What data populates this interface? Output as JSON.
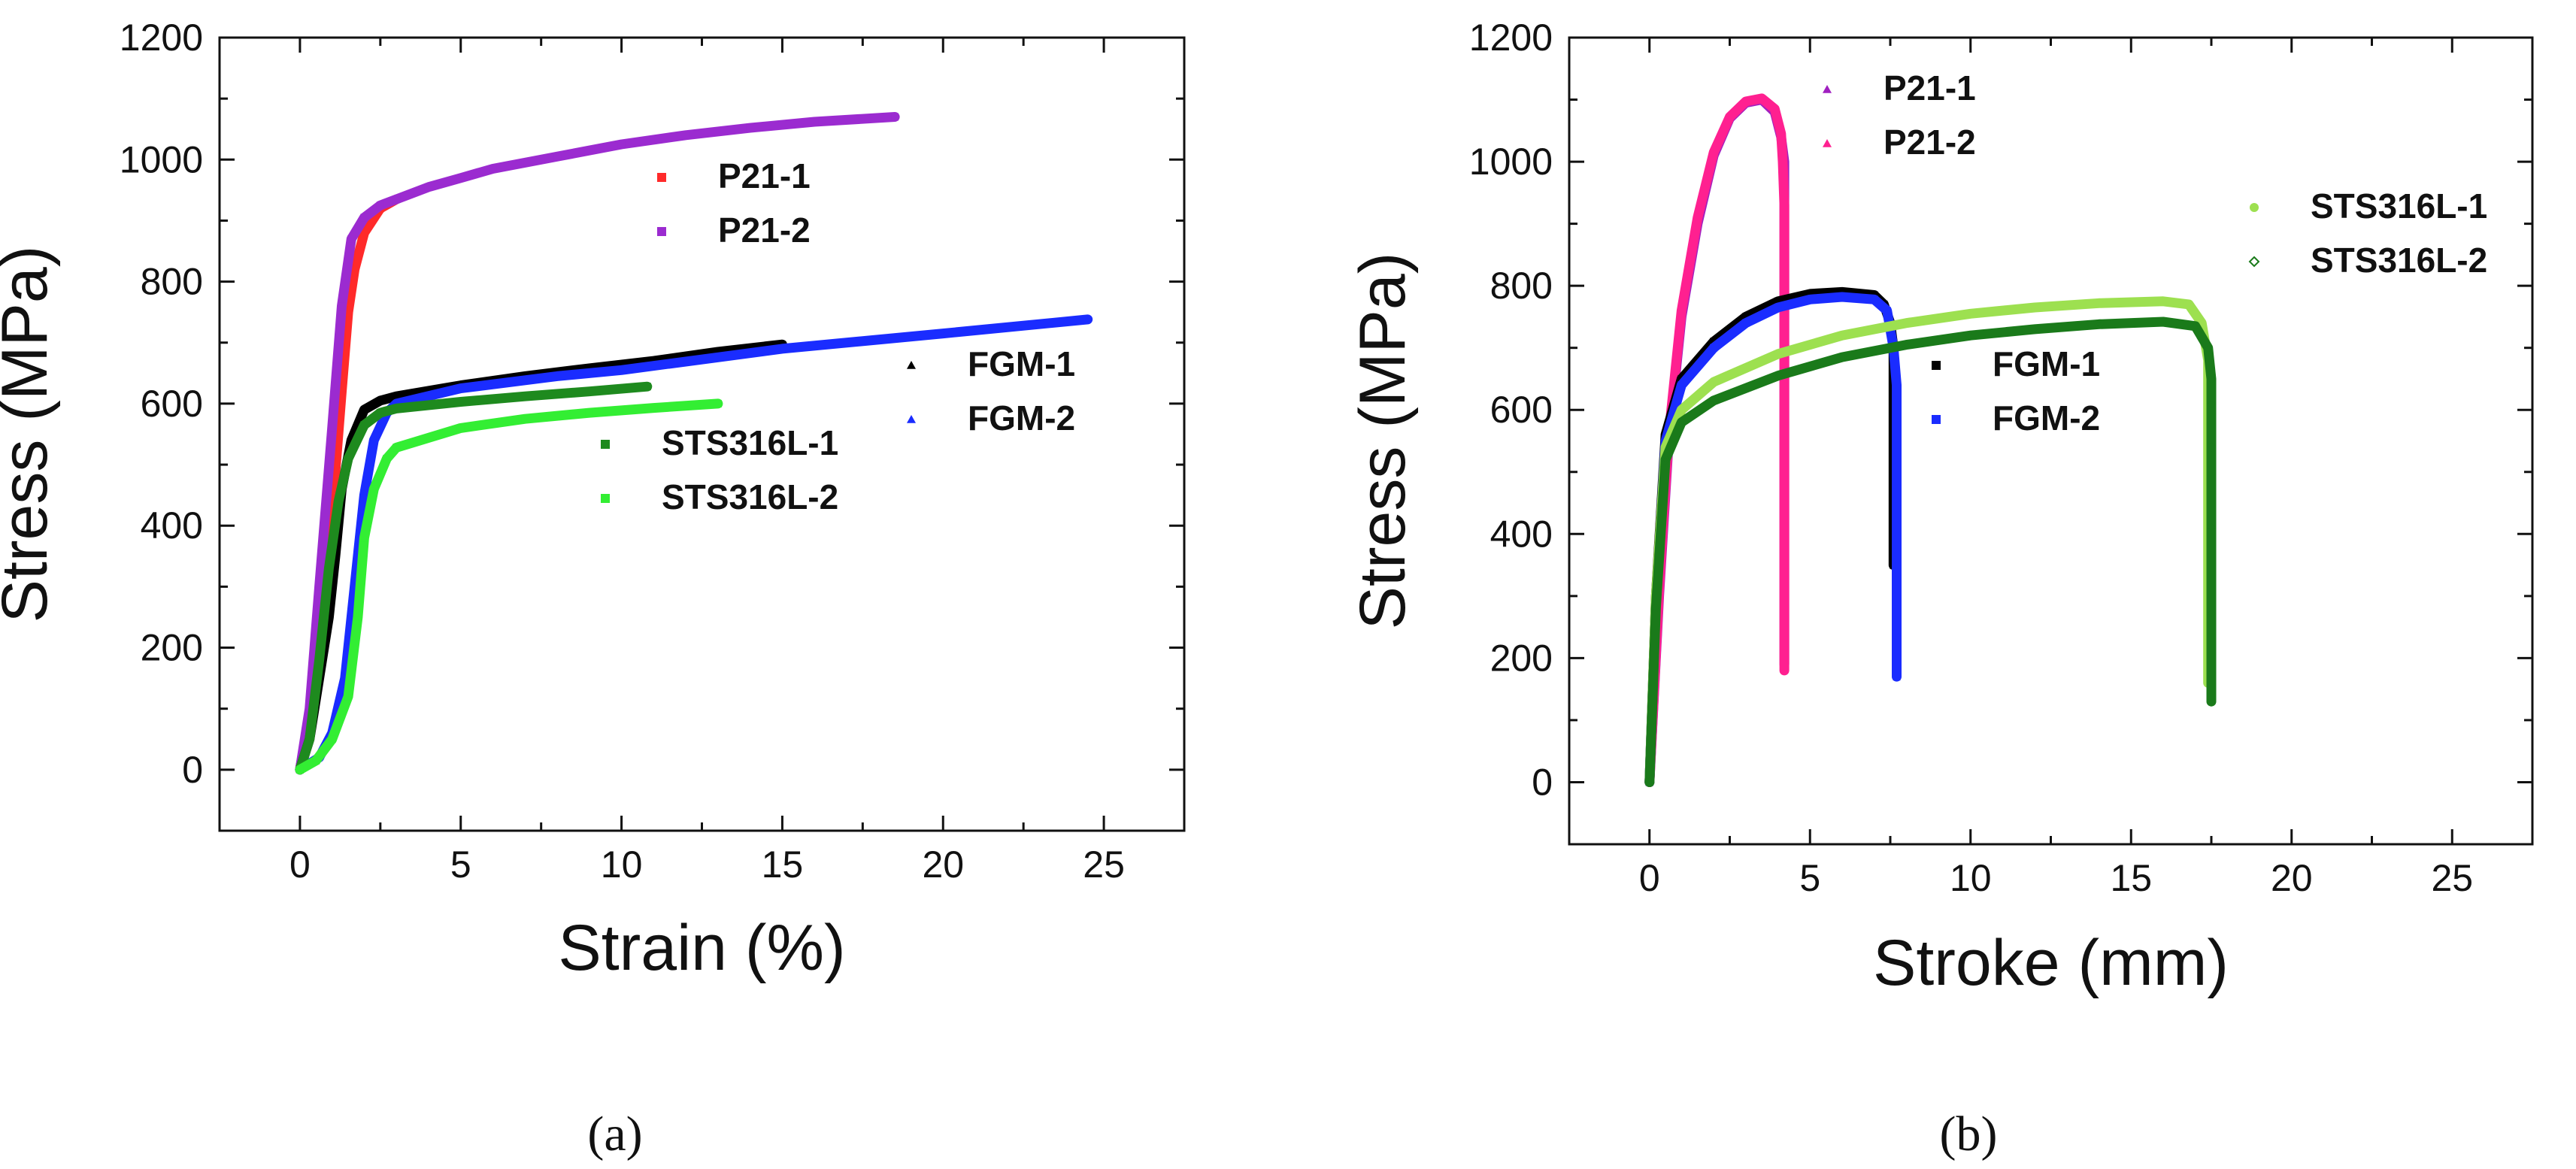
{
  "chart_data": [
    {
      "id": "a",
      "type": "scatter",
      "panel_label": "(a)",
      "xlabel": "Strain (%)",
      "ylabel": "Stress (MPa)",
      "xlim": [
        -2.5,
        27.5
      ],
      "ylim": [
        -100,
        1200
      ],
      "xticks": [
        0,
        5,
        10,
        15,
        20,
        25
      ],
      "yticks": [
        0,
        200,
        400,
        600,
        800,
        1000,
        1200
      ],
      "grid": false,
      "legend_groups": [
        {
          "location": "upper-center",
          "entries": [
            0,
            1
          ]
        },
        {
          "location": "center-right",
          "entries": [
            2,
            3
          ]
        },
        {
          "location": "center",
          "entries": [
            4,
            5
          ]
        }
      ],
      "series": [
        {
          "name": "P21-1",
          "color": "#ff2a2a",
          "marker": "square",
          "points": [
            [
              0,
              0
            ],
            [
              0.5,
              150
            ],
            [
              1.0,
              420
            ],
            [
              1.3,
              620
            ],
            [
              1.5,
              750
            ],
            [
              1.7,
              820
            ],
            [
              2.0,
              880
            ],
            [
              2.5,
              920
            ],
            [
              3,
              935
            ]
          ]
        },
        {
          "name": "P21-2",
          "color": "#9b2bd0",
          "marker": "square",
          "points": [
            [
              0,
              0
            ],
            [
              0.3,
              100
            ],
            [
              0.6,
              300
            ],
            [
              1.0,
              560
            ],
            [
              1.3,
              760
            ],
            [
              1.6,
              870
            ],
            [
              2.0,
              905
            ],
            [
              2.5,
              925
            ],
            [
              3,
              935
            ],
            [
              4,
              955
            ],
            [
              5,
              970
            ],
            [
              6,
              985
            ],
            [
              8,
              1005
            ],
            [
              10,
              1025
            ],
            [
              12,
              1040
            ],
            [
              14,
              1052
            ],
            [
              16,
              1062
            ],
            [
              18.5,
              1070
            ]
          ]
        },
        {
          "name": "FGM-1",
          "color": "#000000",
          "marker": "triangle",
          "points": [
            [
              0,
              0
            ],
            [
              0.3,
              50
            ],
            [
              0.6,
              150
            ],
            [
              0.9,
              250
            ],
            [
              1.1,
              350
            ],
            [
              1.3,
              460
            ],
            [
              1.6,
              540
            ],
            [
              2,
              590
            ],
            [
              2.5,
              605
            ],
            [
              3,
              612
            ],
            [
              5,
              630
            ],
            [
              7,
              645
            ],
            [
              9,
              658
            ],
            [
              11,
              670
            ],
            [
              13,
              685
            ],
            [
              15,
              697
            ]
          ]
        },
        {
          "name": "FGM-2",
          "color": "#1a2cff",
          "marker": "triangle",
          "points": [
            [
              0,
              0
            ],
            [
              0.6,
              20
            ],
            [
              1.0,
              60
            ],
            [
              1.4,
              150
            ],
            [
              1.7,
              300
            ],
            [
              2.0,
              450
            ],
            [
              2.3,
              540
            ],
            [
              2.7,
              585
            ],
            [
              3,
              600
            ],
            [
              5,
              625
            ],
            [
              8,
              645
            ],
            [
              10,
              655
            ],
            [
              15,
              690
            ],
            [
              20,
              715
            ],
            [
              24.5,
              738
            ]
          ]
        },
        {
          "name": "STS316L-1",
          "color": "#1e8a1e",
          "marker": "square",
          "points": [
            [
              0,
              0
            ],
            [
              0.3,
              50
            ],
            [
              0.6,
              180
            ],
            [
              0.9,
              330
            ],
            [
              1.2,
              440
            ],
            [
              1.5,
              510
            ],
            [
              2,
              565
            ],
            [
              2.5,
              585
            ],
            [
              3,
              592
            ],
            [
              5,
              603
            ],
            [
              7,
              612
            ],
            [
              9,
              620
            ],
            [
              10.8,
              628
            ]
          ]
        },
        {
          "name": "STS316L-2",
          "color": "#33ee33",
          "marker": "square",
          "points": [
            [
              0,
              0
            ],
            [
              0.5,
              15
            ],
            [
              1.0,
              50
            ],
            [
              1.5,
              120
            ],
            [
              1.8,
              250
            ],
            [
              2.0,
              380
            ],
            [
              2.3,
              460
            ],
            [
              2.7,
              510
            ],
            [
              3,
              528
            ],
            [
              5,
              560
            ],
            [
              7,
              575
            ],
            [
              9,
              585
            ],
            [
              11,
              593
            ],
            [
              13,
              600
            ]
          ]
        }
      ]
    },
    {
      "id": "b",
      "type": "scatter",
      "panel_label": "(b)",
      "xlabel": "Stroke (mm)",
      "ylabel": "Stress (MPa)",
      "xlim": [
        -2.5,
        27.5
      ],
      "ylim": [
        -100,
        1200
      ],
      "xticks": [
        0,
        5,
        10,
        15,
        20,
        25
      ],
      "yticks": [
        0,
        200,
        400,
        600,
        800,
        1000,
        1200
      ],
      "grid": false,
      "legend_groups": [
        {
          "location": "top-center",
          "entries": [
            0,
            1
          ]
        },
        {
          "location": "upper-right",
          "entries": [
            4,
            5
          ]
        },
        {
          "location": "center",
          "entries": [
            2,
            3
          ]
        }
      ],
      "series": [
        {
          "name": "P21-1",
          "color": "#a020c0",
          "marker": "triangle",
          "points": [
            [
              0,
              0
            ],
            [
              0.3,
              300
            ],
            [
              0.6,
              550
            ],
            [
              1.0,
              750
            ],
            [
              1.5,
              900
            ],
            [
              2.0,
              1010
            ],
            [
              2.5,
              1070
            ],
            [
              3.0,
              1095
            ],
            [
              3.5,
              1100
            ],
            [
              3.9,
              1080
            ],
            [
              4.1,
              1040
            ],
            [
              4.2,
              1000
            ],
            [
              4.2,
              950
            ],
            [
              4.2,
              800
            ],
            [
              4.2,
              600
            ],
            [
              4.2,
              400
            ],
            [
              4.2,
              250
            ],
            [
              4.2,
              190
            ]
          ]
        },
        {
          "name": "P21-2",
          "color": "#ff2090",
          "marker": "triangle",
          "points": [
            [
              0,
              0
            ],
            [
              0.3,
              310
            ],
            [
              0.6,
              560
            ],
            [
              1.0,
              760
            ],
            [
              1.5,
              910
            ],
            [
              2.0,
              1015
            ],
            [
              2.5,
              1072
            ],
            [
              3.0,
              1097
            ],
            [
              3.5,
              1102
            ],
            [
              3.9,
              1085
            ],
            [
              4.1,
              1045
            ],
            [
              4.15,
              1000
            ],
            [
              4.2,
              930
            ],
            [
              4.2,
              790
            ],
            [
              4.2,
              580
            ],
            [
              4.2,
              460
            ],
            [
              4.2,
              370
            ],
            [
              4.2,
              290
            ],
            [
              4.2,
              240
            ],
            [
              4.2,
              180
            ]
          ]
        },
        {
          "name": "FGM-1",
          "color": "#000000",
          "marker": "square",
          "points": [
            [
              0,
              0
            ],
            [
              0.2,
              300
            ],
            [
              0.5,
              560
            ],
            [
              1,
              650
            ],
            [
              2,
              710
            ],
            [
              3,
              750
            ],
            [
              4,
              775
            ],
            [
              5,
              787
            ],
            [
              6,
              790
            ],
            [
              7,
              785
            ],
            [
              7.3,
              770
            ],
            [
              7.5,
              740
            ],
            [
              7.6,
              700
            ],
            [
              7.6,
              600
            ],
            [
              7.6,
              530
            ],
            [
              7.6,
              450
            ],
            [
              7.6,
              390
            ],
            [
              7.6,
              350
            ]
          ]
        },
        {
          "name": "FGM-2",
          "color": "#1a2cff",
          "marker": "square",
          "points": [
            [
              0,
              0
            ],
            [
              0.2,
              290
            ],
            [
              0.5,
              550
            ],
            [
              1,
              640
            ],
            [
              2,
              700
            ],
            [
              3,
              740
            ],
            [
              4,
              765
            ],
            [
              5,
              778
            ],
            [
              6,
              782
            ],
            [
              7,
              778
            ],
            [
              7.4,
              760
            ],
            [
              7.6,
              700
            ],
            [
              7.7,
              640
            ],
            [
              7.7,
              580
            ],
            [
              7.7,
              440
            ],
            [
              7.7,
              330
            ],
            [
              7.7,
              230
            ],
            [
              7.7,
              170
            ]
          ]
        },
        {
          "name": "STS316L-1",
          "color": "#9de050",
          "marker": "circle",
          "points": [
            [
              0,
              0
            ],
            [
              0.2,
              300
            ],
            [
              0.5,
              540
            ],
            [
              1,
              600
            ],
            [
              2,
              645
            ],
            [
              4,
              690
            ],
            [
              6,
              720
            ],
            [
              8,
              740
            ],
            [
              10,
              755
            ],
            [
              12,
              765
            ],
            [
              14,
              772
            ],
            [
              16,
              775
            ],
            [
              16.8,
              770
            ],
            [
              17.2,
              740
            ],
            [
              17.4,
              680
            ],
            [
              17.4,
              560
            ],
            [
              17.4,
              420
            ],
            [
              17.4,
              285
            ],
            [
              17.4,
              200
            ],
            [
              17.4,
              160
            ]
          ]
        },
        {
          "name": "STS316L-2",
          "color": "#1a7a1a",
          "marker": "diamond",
          "points": [
            [
              0,
              0
            ],
            [
              0.2,
              280
            ],
            [
              0.5,
              520
            ],
            [
              1,
              580
            ],
            [
              2,
              615
            ],
            [
              4,
              655
            ],
            [
              6,
              685
            ],
            [
              8,
              705
            ],
            [
              10,
              720
            ],
            [
              12,
              730
            ],
            [
              14,
              738
            ],
            [
              16,
              742
            ],
            [
              17,
              735
            ],
            [
              17.4,
              700
            ],
            [
              17.5,
              650
            ],
            [
              17.5,
              610
            ],
            [
              17.5,
              540
            ],
            [
              17.5,
              410
            ],
            [
              17.5,
              270
            ],
            [
              17.5,
              175
            ],
            [
              17.5,
              130
            ]
          ]
        }
      ]
    }
  ]
}
